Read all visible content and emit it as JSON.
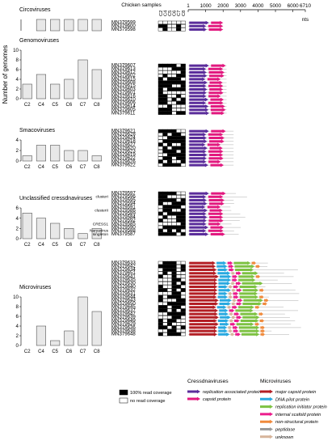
{
  "y_axis_title": "Number of genomes",
  "sample_labels": [
    "C2",
    "C4",
    "C5",
    "C6",
    "C7",
    "C8"
  ],
  "panels": [
    {
      "id": "circo",
      "title": "Circoviruses",
      "ymax": 1,
      "ticks": [],
      "values": [
        0,
        1,
        1,
        1,
        1,
        1
      ],
      "show_xlabels": false
    },
    {
      "id": "genomo",
      "title": "Genomoviruses",
      "ymax": 10,
      "ticks": [
        0,
        2,
        4,
        6,
        8,
        10
      ],
      "values": [
        3,
        5,
        3,
        4,
        8,
        6
      ],
      "show_xlabels": true
    },
    {
      "id": "smaco",
      "title": "Smacoviruses",
      "ymax": 4,
      "ticks": [
        0,
        2,
        4
      ],
      "values": [
        1,
        3,
        3,
        2,
        2,
        1
      ],
      "show_xlabels": true
    },
    {
      "id": "uncl",
      "title": "Unclassified cressdnaviruses",
      "ymax": 6,
      "ticks": [
        0,
        2,
        4,
        6
      ],
      "values": [
        5,
        4,
        3,
        2,
        1,
        2
      ],
      "show_xlabels": true
    },
    {
      "id": "micro",
      "title": "Microviruses",
      "ymax": 10,
      "ticks": [
        0,
        2,
        4,
        6,
        8,
        10
      ],
      "values": [
        0,
        4,
        1,
        3,
        10,
        7
      ],
      "show_xlabels": true
    }
  ],
  "heatmap_header": "Chicken samples",
  "scale": {
    "ticks": [
      1,
      1000,
      2000,
      3000,
      4000,
      5000,
      6000,
      6710
    ],
    "max": 6710,
    "unit": "nts"
  },
  "groups": [
    {
      "panel": "circo",
      "type": "circo",
      "ids": [
        "MN379599",
        "MN379600",
        "MN379598"
      ]
    },
    {
      "panel": "genomo",
      "type": "genomo",
      "ids": [
        "MN379607",
        "MN379613",
        "MN379612",
        "MN379602",
        "MN379615",
        "MN379608",
        "MN379615",
        "MN379603",
        "MN379601",
        "MN379616",
        "MN379610",
        "MN379606",
        "MN379614",
        "MN379605",
        "MN379611"
      ]
    },
    {
      "panel": "smaco",
      "type": "smaco",
      "ids": [
        "MN379621",
        "MN379628",
        "MN379624",
        "MN379618",
        "MN379627",
        "MN379620",
        "MN379623",
        "MN379619",
        "MN379622",
        "MN379626",
        "MN379622"
      ]
    },
    {
      "panel": "uncl",
      "type": "uncl",
      "ids": [
        "MN379597",
        "MN379596",
        "MN379595",
        "MN379594",
        "MN379591",
        "MN379586",
        "MN379589",
        "MN379584",
        "MN379592",
        "MN379585",
        "MN379590",
        "MN379588",
        "MN379587"
      ]
    },
    {
      "panel": "micro",
      "type": "micro",
      "ids": [
        "MN379633",
        "MN379642",
        "MN379634",
        "MN379651",
        "MN379641",
        "MN379635",
        "MN379630",
        "MN379640",
        "MN379632",
        "MN379631",
        "MN379644",
        "MN379643",
        "MN379650",
        "MN379645",
        "MN379637",
        "MN379647",
        "MN379639",
        "MN379649",
        "MN379629",
        "MN379636",
        "MN379638",
        "MN379648"
      ]
    }
  ],
  "cluster_labels": [
    {
      "text": "clusterI",
      "group": "uncl",
      "row": 1
    },
    {
      "text": "clusterII",
      "group": "uncl",
      "row": 5
    },
    {
      "text": "CRESS1",
      "group": "uncl",
      "row": 9
    },
    {
      "text": "Naryavirus",
      "group": "uncl",
      "row": 11
    },
    {
      "text": "singleton",
      "group": "uncl",
      "row": 12
    }
  ],
  "legend_coverage": [
    {
      "label": "100% read coverage",
      "fill": "#000000"
    },
    {
      "label": "no read coverage",
      "fill": "#ffffff"
    }
  ],
  "legend_cress_title": "Cressdnaviruses",
  "legend_cress": [
    {
      "label": "replication associated protein",
      "color": "#5b2d9b"
    },
    {
      "label": "capsid protein",
      "color": "#e2197f"
    }
  ],
  "legend_micro_title": "Microviruses",
  "legend_micro": [
    {
      "label": "major capsid protein",
      "color": "#b31e24"
    },
    {
      "label": "DNA pilot protein",
      "color": "#29a9e0"
    },
    {
      "label": "replication initiator protein",
      "color": "#7dc242"
    },
    {
      "label": "internal scafold protein",
      "color": "#ec1c8c"
    },
    {
      "label": "non-structural protein",
      "color": "#f08a3c"
    },
    {
      "label": "peptidase",
      "color": "#9a9a9a"
    },
    {
      "label": "unknown",
      "color": "#d6b49a"
    }
  ]
}
